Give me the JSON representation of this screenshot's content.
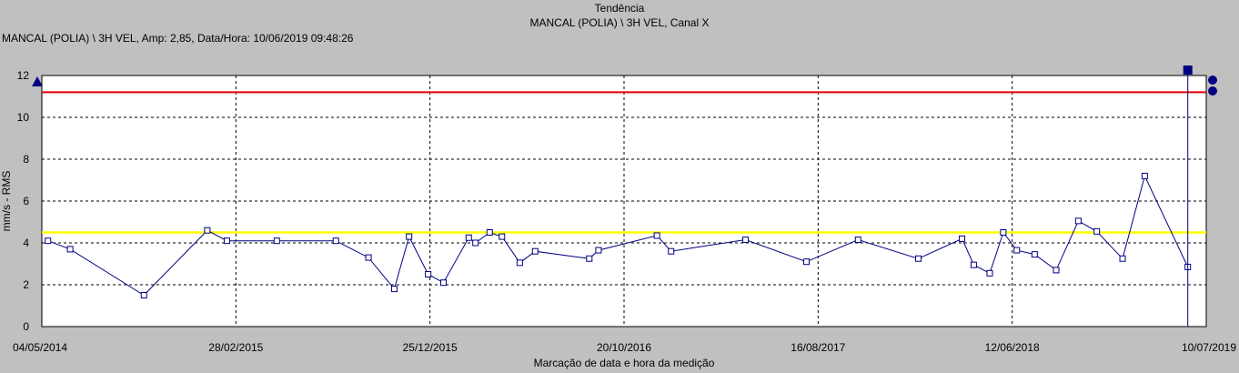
{
  "chart_data": {
    "type": "line",
    "title": "Tendência",
    "subtitle": "MANCAL (POLIA) \\ 3H VEL, Canal X",
    "info": "MANCAL (POLIA) \\ 3H VEL, Amp: 2,85, Data/Hora: 10/06/2019 09:48:26",
    "xlabel": "Marcação de data e hora da medição",
    "ylabel": "mm/s - RMS",
    "ylim": [
      0,
      12
    ],
    "yticks": [
      0,
      2,
      4,
      6,
      8,
      10,
      12
    ],
    "xlim": [
      "2014-05-04",
      "2019-07-10"
    ],
    "xtick_labels": [
      "04/05/2014",
      "28/02/2015",
      "25/12/2015",
      "20/10/2016",
      "16/08/2017",
      "12/06/2018",
      "10/07/2019"
    ],
    "grid": true,
    "alarm_high": 11.2,
    "alert_level": 4.5,
    "cursor_date": "2019-06-10",
    "series": [
      {
        "color": "#000080",
        "marker": "square",
        "points": [
          [
            "2014-05-14",
            4.1
          ],
          [
            "2014-06-19",
            3.7
          ],
          [
            "2014-10-17",
            1.5
          ],
          [
            "2015-01-28",
            4.6
          ],
          [
            "2015-03-01",
            4.1
          ],
          [
            "2015-05-21",
            4.1
          ],
          [
            "2015-08-25",
            4.1
          ],
          [
            "2015-10-17",
            3.3
          ],
          [
            "2015-11-28",
            1.8
          ],
          [
            "2015-12-22",
            4.3
          ],
          [
            "2016-01-22",
            2.5
          ],
          [
            "2016-02-16",
            2.1
          ],
          [
            "2016-03-28",
            4.25
          ],
          [
            "2016-04-08",
            4.0
          ],
          [
            "2016-05-01",
            4.5
          ],
          [
            "2016-05-21",
            4.3
          ],
          [
            "2016-06-19",
            3.05
          ],
          [
            "2016-07-14",
            3.6
          ],
          [
            "2016-10-10",
            3.25
          ],
          [
            "2016-10-25",
            3.65
          ],
          [
            "2017-01-28",
            4.35
          ],
          [
            "2017-02-20",
            3.6
          ],
          [
            "2017-06-21",
            4.15
          ],
          [
            "2017-09-28",
            3.1
          ],
          [
            "2017-12-21",
            4.15
          ],
          [
            "2018-03-29",
            3.25
          ],
          [
            "2018-06-08",
            4.2
          ],
          [
            "2018-06-27",
            2.95
          ],
          [
            "2018-07-23",
            2.55
          ],
          [
            "2018-08-14",
            4.5
          ],
          [
            "2018-09-05",
            3.65
          ],
          [
            "2018-10-04",
            3.45
          ],
          [
            "2018-11-08",
            2.7
          ],
          [
            "2018-12-14",
            5.05
          ],
          [
            "2019-01-13",
            4.55
          ],
          [
            "2019-02-24",
            3.25
          ],
          [
            "2019-04-01",
            7.2
          ],
          [
            "2019-06-10",
            2.85
          ]
        ]
      }
    ]
  },
  "colors": {
    "alarm": "#e00000",
    "alert": "#ffff00",
    "series": "#000080",
    "cursor": "#000080"
  }
}
